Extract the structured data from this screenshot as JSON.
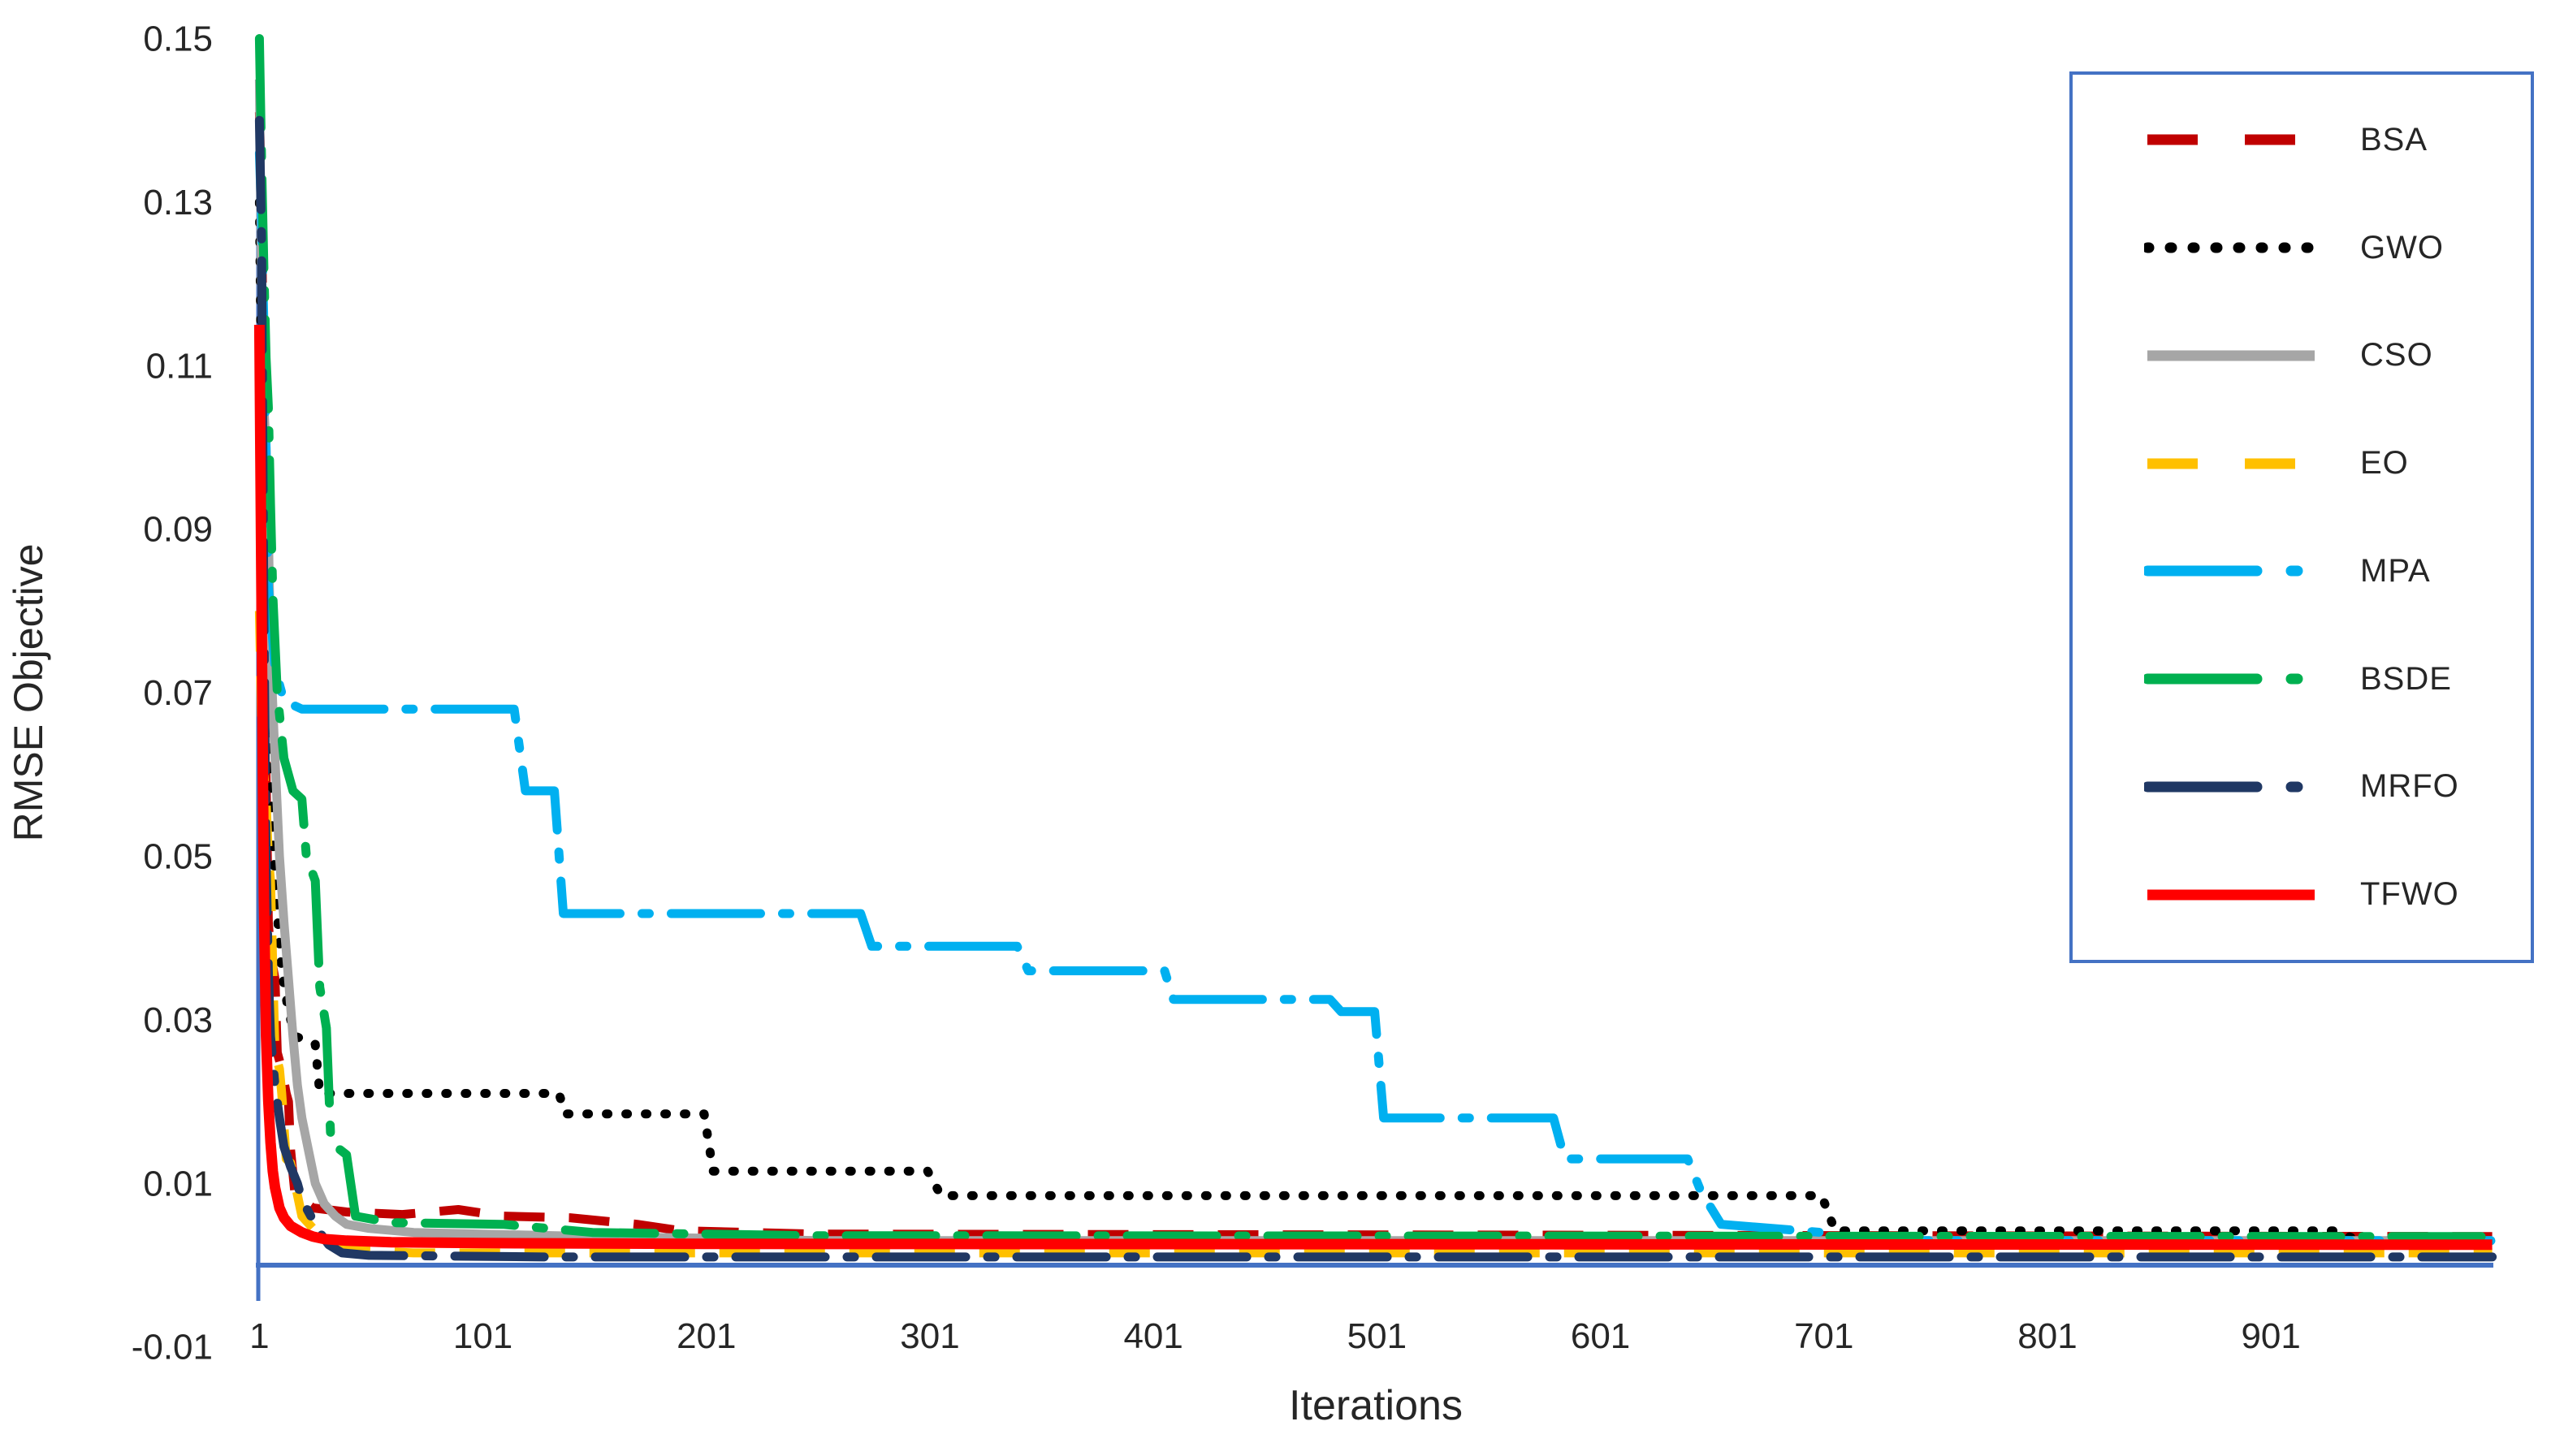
{
  "chart_data": {
    "type": "line",
    "title": "",
    "xlabel": "Iterations",
    "ylabel": "RMSE Objective",
    "xlim": [
      1,
      1000
    ],
    "ylim": [
      -0.01,
      0.15
    ],
    "grid": false,
    "legend_position": "right-overlay",
    "axis_color": "#4472C4",
    "text_color": "#262626",
    "background_color": "#ffffff",
    "x_ticks": [
      1,
      101,
      201,
      301,
      401,
      501,
      601,
      701,
      801,
      901
    ],
    "x_tick_labels": [
      "1",
      "101",
      "201",
      "301",
      "401",
      "501",
      "601",
      "701",
      "801",
      "901"
    ],
    "y_ticks": [
      0.15,
      0.13,
      0.11,
      0.09,
      0.07,
      0.05,
      0.03,
      0.01,
      -0.01
    ],
    "y_tick_labels": [
      "0.15",
      "0.13",
      "0.11",
      "0.09",
      "0.07",
      "0.05",
      "0.03",
      "0.01",
      "-0.01"
    ],
    "series": [
      {
        "name": "BSA",
        "color": "#C00000",
        "style": "long-dash",
        "width": 11,
        "points": [
          [
            1,
            0.141
          ],
          [
            2,
            0.13
          ],
          [
            3,
            0.1
          ],
          [
            4,
            0.06
          ],
          [
            5,
            0.042
          ],
          [
            6,
            0.038
          ],
          [
            8,
            0.035
          ],
          [
            9,
            0.026
          ],
          [
            11,
            0.024
          ],
          [
            13,
            0.021
          ],
          [
            14,
            0.02
          ],
          [
            15,
            0.014
          ],
          [
            17,
            0.0085
          ],
          [
            25,
            0.007
          ],
          [
            40,
            0.0065
          ],
          [
            65,
            0.0062
          ],
          [
            90,
            0.0068
          ],
          [
            110,
            0.006
          ],
          [
            140,
            0.0058
          ],
          [
            170,
            0.005
          ],
          [
            190,
            0.0042
          ],
          [
            250,
            0.0038
          ],
          [
            1000,
            0.0035
          ]
        ]
      },
      {
        "name": "GWO",
        "color": "#000000",
        "style": "dotted",
        "width": 11,
        "points": [
          [
            1,
            0.13
          ],
          [
            2,
            0.105
          ],
          [
            3,
            0.088
          ],
          [
            5,
            0.068
          ],
          [
            7,
            0.052
          ],
          [
            9,
            0.043
          ],
          [
            11,
            0.036
          ],
          [
            14,
            0.031
          ],
          [
            17,
            0.028
          ],
          [
            26,
            0.027
          ],
          [
            28,
            0.021
          ],
          [
            135,
            0.021
          ],
          [
            138,
            0.0185
          ],
          [
            200,
            0.0185
          ],
          [
            204,
            0.0115
          ],
          [
            300,
            0.0115
          ],
          [
            306,
            0.0085
          ],
          [
            700,
            0.0085
          ],
          [
            706,
            0.0042
          ],
          [
            930,
            0.0042
          ],
          [
            940,
            0.003
          ],
          [
            1000,
            0.003
          ]
        ]
      },
      {
        "name": "CSO",
        "color": "#A6A6A6",
        "style": "solid",
        "width": 11,
        "points": [
          [
            1,
            0.145
          ],
          [
            2,
            0.12
          ],
          [
            3,
            0.105
          ],
          [
            4,
            0.1
          ],
          [
            5,
            0.09
          ],
          [
            6,
            0.075
          ],
          [
            8,
            0.062
          ],
          [
            10,
            0.05
          ],
          [
            12,
            0.042
          ],
          [
            14,
            0.035
          ],
          [
            16,
            0.028
          ],
          [
            18,
            0.022
          ],
          [
            20,
            0.018
          ],
          [
            23,
            0.014
          ],
          [
            26,
            0.01
          ],
          [
            30,
            0.0075
          ],
          [
            35,
            0.006
          ],
          [
            40,
            0.005
          ],
          [
            50,
            0.0045
          ],
          [
            70,
            0.004
          ],
          [
            100,
            0.0038
          ],
          [
            150,
            0.0035
          ],
          [
            200,
            0.0033
          ],
          [
            250,
            0.003
          ],
          [
            1000,
            0.003
          ]
        ]
      },
      {
        "name": "EO",
        "color": "#FFC000",
        "style": "long-dash",
        "width": 11,
        "points": [
          [
            1,
            0.08
          ],
          [
            2,
            0.066
          ],
          [
            3,
            0.06
          ],
          [
            4,
            0.057
          ],
          [
            5,
            0.05
          ],
          [
            6,
            0.047
          ],
          [
            8,
            0.026
          ],
          [
            10,
            0.024
          ],
          [
            11,
            0.021
          ],
          [
            13,
            0.013
          ],
          [
            15,
            0.0125
          ],
          [
            20,
            0.006
          ],
          [
            25,
            0.0045
          ],
          [
            30,
            0.003
          ],
          [
            40,
            0.002
          ],
          [
            45,
            0.0018
          ],
          [
            70,
            0.0015
          ],
          [
            1000,
            0.0015
          ]
        ]
      },
      {
        "name": "MPA",
        "color": "#00B0F0",
        "style": "dash-dot",
        "width": 11,
        "points": [
          [
            1,
            0.136
          ],
          [
            2,
            0.128
          ],
          [
            3,
            0.115
          ],
          [
            4,
            0.1
          ],
          [
            5,
            0.083
          ],
          [
            8,
            0.073
          ],
          [
            12,
            0.069
          ],
          [
            20,
            0.068
          ],
          [
            115,
            0.068
          ],
          [
            120,
            0.058
          ],
          [
            133,
            0.058
          ],
          [
            137,
            0.043
          ],
          [
            270,
            0.043
          ],
          [
            275,
            0.039
          ],
          [
            340,
            0.039
          ],
          [
            345,
            0.036
          ],
          [
            406,
            0.036
          ],
          [
            410,
            0.0325
          ],
          [
            480,
            0.0325
          ],
          [
            485,
            0.031
          ],
          [
            500,
            0.031
          ],
          [
            504,
            0.018
          ],
          [
            580,
            0.018
          ],
          [
            585,
            0.013
          ],
          [
            640,
            0.013
          ],
          [
            646,
            0.009
          ],
          [
            655,
            0.005
          ],
          [
            700,
            0.004
          ],
          [
            710,
            0.003
          ],
          [
            1000,
            0.003
          ]
        ]
      },
      {
        "name": "BSDE",
        "color": "#00B050",
        "style": "dash-dot",
        "width": 11,
        "points": [
          [
            1,
            0.15
          ],
          [
            2,
            0.135
          ],
          [
            3,
            0.122
          ],
          [
            4,
            0.111
          ],
          [
            5,
            0.105
          ],
          [
            6,
            0.093
          ],
          [
            7,
            0.082
          ],
          [
            9,
            0.07
          ],
          [
            12,
            0.062
          ],
          [
            16,
            0.058
          ],
          [
            20,
            0.057
          ],
          [
            22,
            0.05
          ],
          [
            26,
            0.047
          ],
          [
            28,
            0.034
          ],
          [
            31,
            0.029
          ],
          [
            33,
            0.015
          ],
          [
            40,
            0.0135
          ],
          [
            44,
            0.006
          ],
          [
            60,
            0.0052
          ],
          [
            110,
            0.005
          ],
          [
            150,
            0.004
          ],
          [
            250,
            0.0036
          ],
          [
            1000,
            0.0035
          ]
        ]
      },
      {
        "name": "MRFO",
        "color": "#203864",
        "style": "dash-dot",
        "width": 11,
        "points": [
          [
            1,
            0.14
          ],
          [
            2,
            0.125
          ],
          [
            3,
            0.08
          ],
          [
            4,
            0.05
          ],
          [
            5,
            0.036
          ],
          [
            6,
            0.028
          ],
          [
            8,
            0.022
          ],
          [
            10,
            0.018
          ],
          [
            12,
            0.0145
          ],
          [
            15,
            0.012
          ],
          [
            18,
            0.01
          ],
          [
            20,
            0.008
          ],
          [
            23,
            0.0065
          ],
          [
            26,
            0.005
          ],
          [
            28,
            0.004
          ],
          [
            32,
            0.0025
          ],
          [
            38,
            0.0015
          ],
          [
            50,
            0.0012
          ],
          [
            130,
            0.001
          ],
          [
            1000,
            0.001
          ]
        ]
      },
      {
        "name": "TFWO",
        "color": "#FF0000",
        "style": "solid",
        "width": 13,
        "points": [
          [
            1,
            0.115
          ],
          [
            2,
            0.08
          ],
          [
            3,
            0.045
          ],
          [
            4,
            0.028
          ],
          [
            5,
            0.02
          ],
          [
            6,
            0.015
          ],
          [
            7,
            0.0115
          ],
          [
            8,
            0.0095
          ],
          [
            10,
            0.007
          ],
          [
            12,
            0.0058
          ],
          [
            15,
            0.0048
          ],
          [
            20,
            0.004
          ],
          [
            25,
            0.0035
          ],
          [
            30,
            0.0032
          ],
          [
            40,
            0.003
          ],
          [
            60,
            0.0028
          ],
          [
            100,
            0.0027
          ],
          [
            200,
            0.0026
          ],
          [
            1000,
            0.0025
          ]
        ]
      }
    ]
  }
}
